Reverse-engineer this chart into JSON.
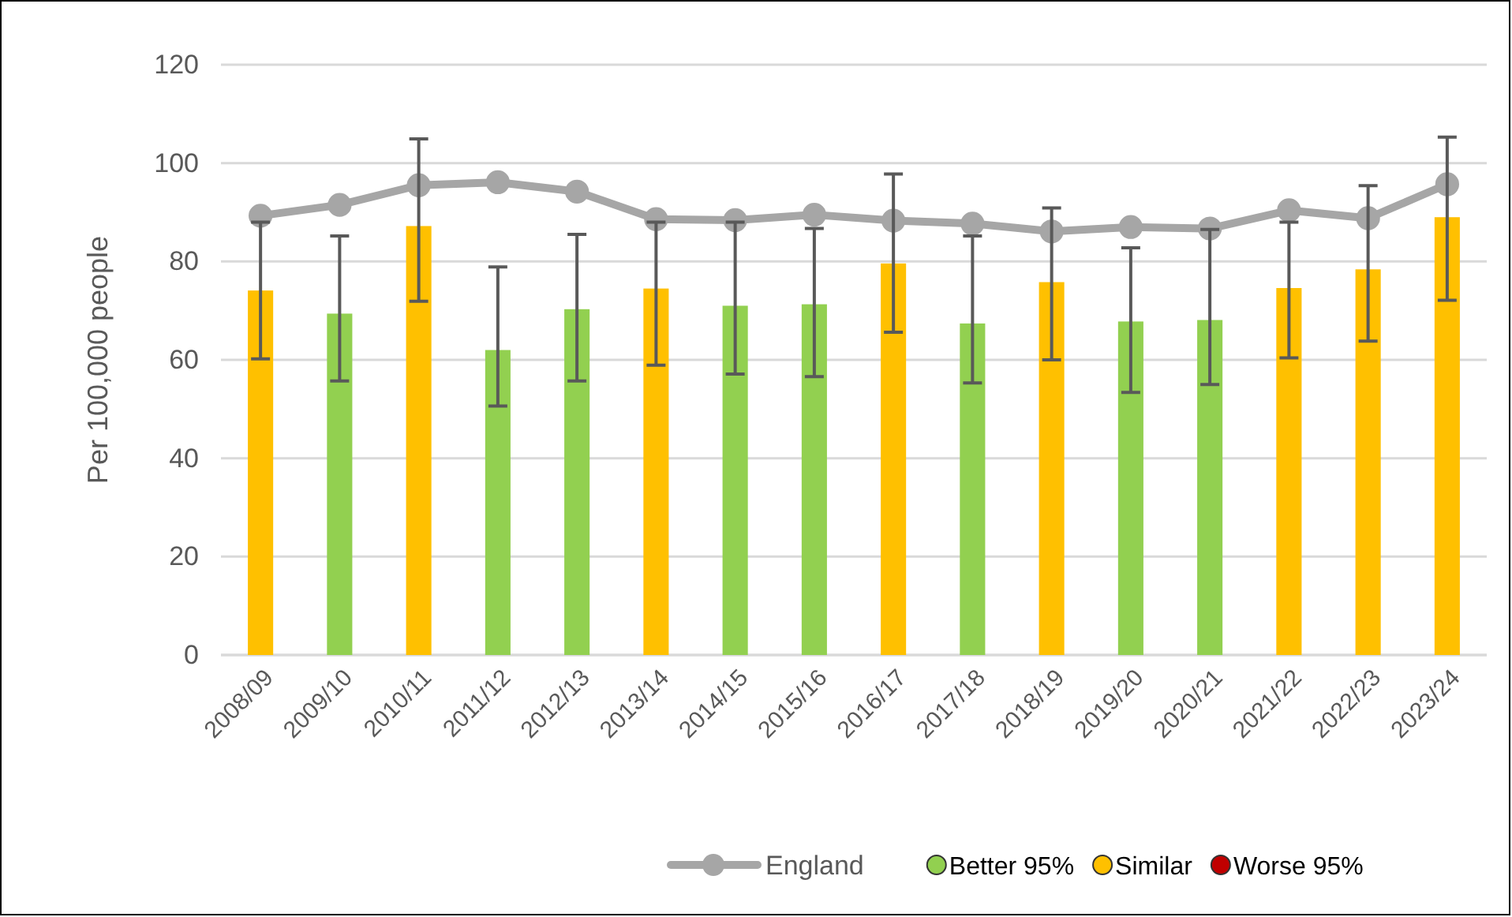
{
  "chart_data": {
    "type": "bar",
    "ylabel": "Per 100,000 people",
    "categories": [
      "2008/09",
      "2009/10",
      "2010/11",
      "2011/12",
      "2012/13",
      "2013/14",
      "2014/15",
      "2015/16",
      "2016/17",
      "2017/18",
      "2018/19",
      "2019/20",
      "2020/21",
      "2021/22",
      "2022/23",
      "2023/24"
    ],
    "stacked": true,
    "series": [
      {
        "name": "Better 95%",
        "color": "#92d050",
        "values": [
          null,
          69.4,
          null,
          62.0,
          70.3,
          null,
          71.0,
          71.3,
          null,
          67.4,
          null,
          67.8,
          68.1,
          null,
          null,
          null
        ],
        "errors": [
          null,
          [
            55.7,
            85.2
          ],
          null,
          [
            50.6,
            78.9
          ],
          [
            55.7,
            85.5
          ],
          null,
          [
            57.1,
            88
          ],
          [
            56.6,
            86.7
          ],
          null,
          [
            55.3,
            85.2
          ],
          null,
          [
            53.4,
            82.8
          ],
          [
            55.0,
            86.5
          ],
          null,
          null,
          null
        ]
      },
      {
        "name": "Similar",
        "color": "#ffc000",
        "values": [
          74.1,
          null,
          87.2,
          null,
          null,
          74.5,
          null,
          null,
          79.6,
          null,
          75.8,
          null,
          null,
          74.6,
          78.4,
          89.0
        ],
        "errors": [
          [
            60.2,
            88
          ],
          null,
          [
            71.9,
            104.9
          ],
          null,
          null,
          [
            58.9,
            88
          ],
          null,
          null,
          [
            65.6,
            97.8
          ],
          null,
          [
            60.0,
            90.9
          ],
          null,
          null,
          [
            60.4,
            88
          ],
          [
            63.8,
            95.4
          ],
          [
            72.1,
            105.3
          ]
        ]
      },
      {
        "name": "Worse 95%",
        "color": "#c00000",
        "values": [
          null,
          null,
          null,
          null,
          null,
          null,
          null,
          null,
          null,
          null,
          null,
          null,
          null,
          null,
          null,
          null
        ]
      },
      {
        "name": "England",
        "type": "line",
        "color": "#a6a6a6",
        "marker": "circle",
        "line_style": "solid",
        "values": [
          89.3,
          91.5,
          95.5,
          96.1,
          94.2,
          88.6,
          88.4,
          89.5,
          88.3,
          87.7,
          86.1,
          87.0,
          86.7,
          90.4,
          88.8,
          95.7
        ]
      }
    ],
    "ylim": [
      0,
      120
    ],
    "yticks": [
      0,
      20,
      40,
      60,
      80,
      100,
      120
    ],
    "grid": "y",
    "legend": "bottom"
  }
}
